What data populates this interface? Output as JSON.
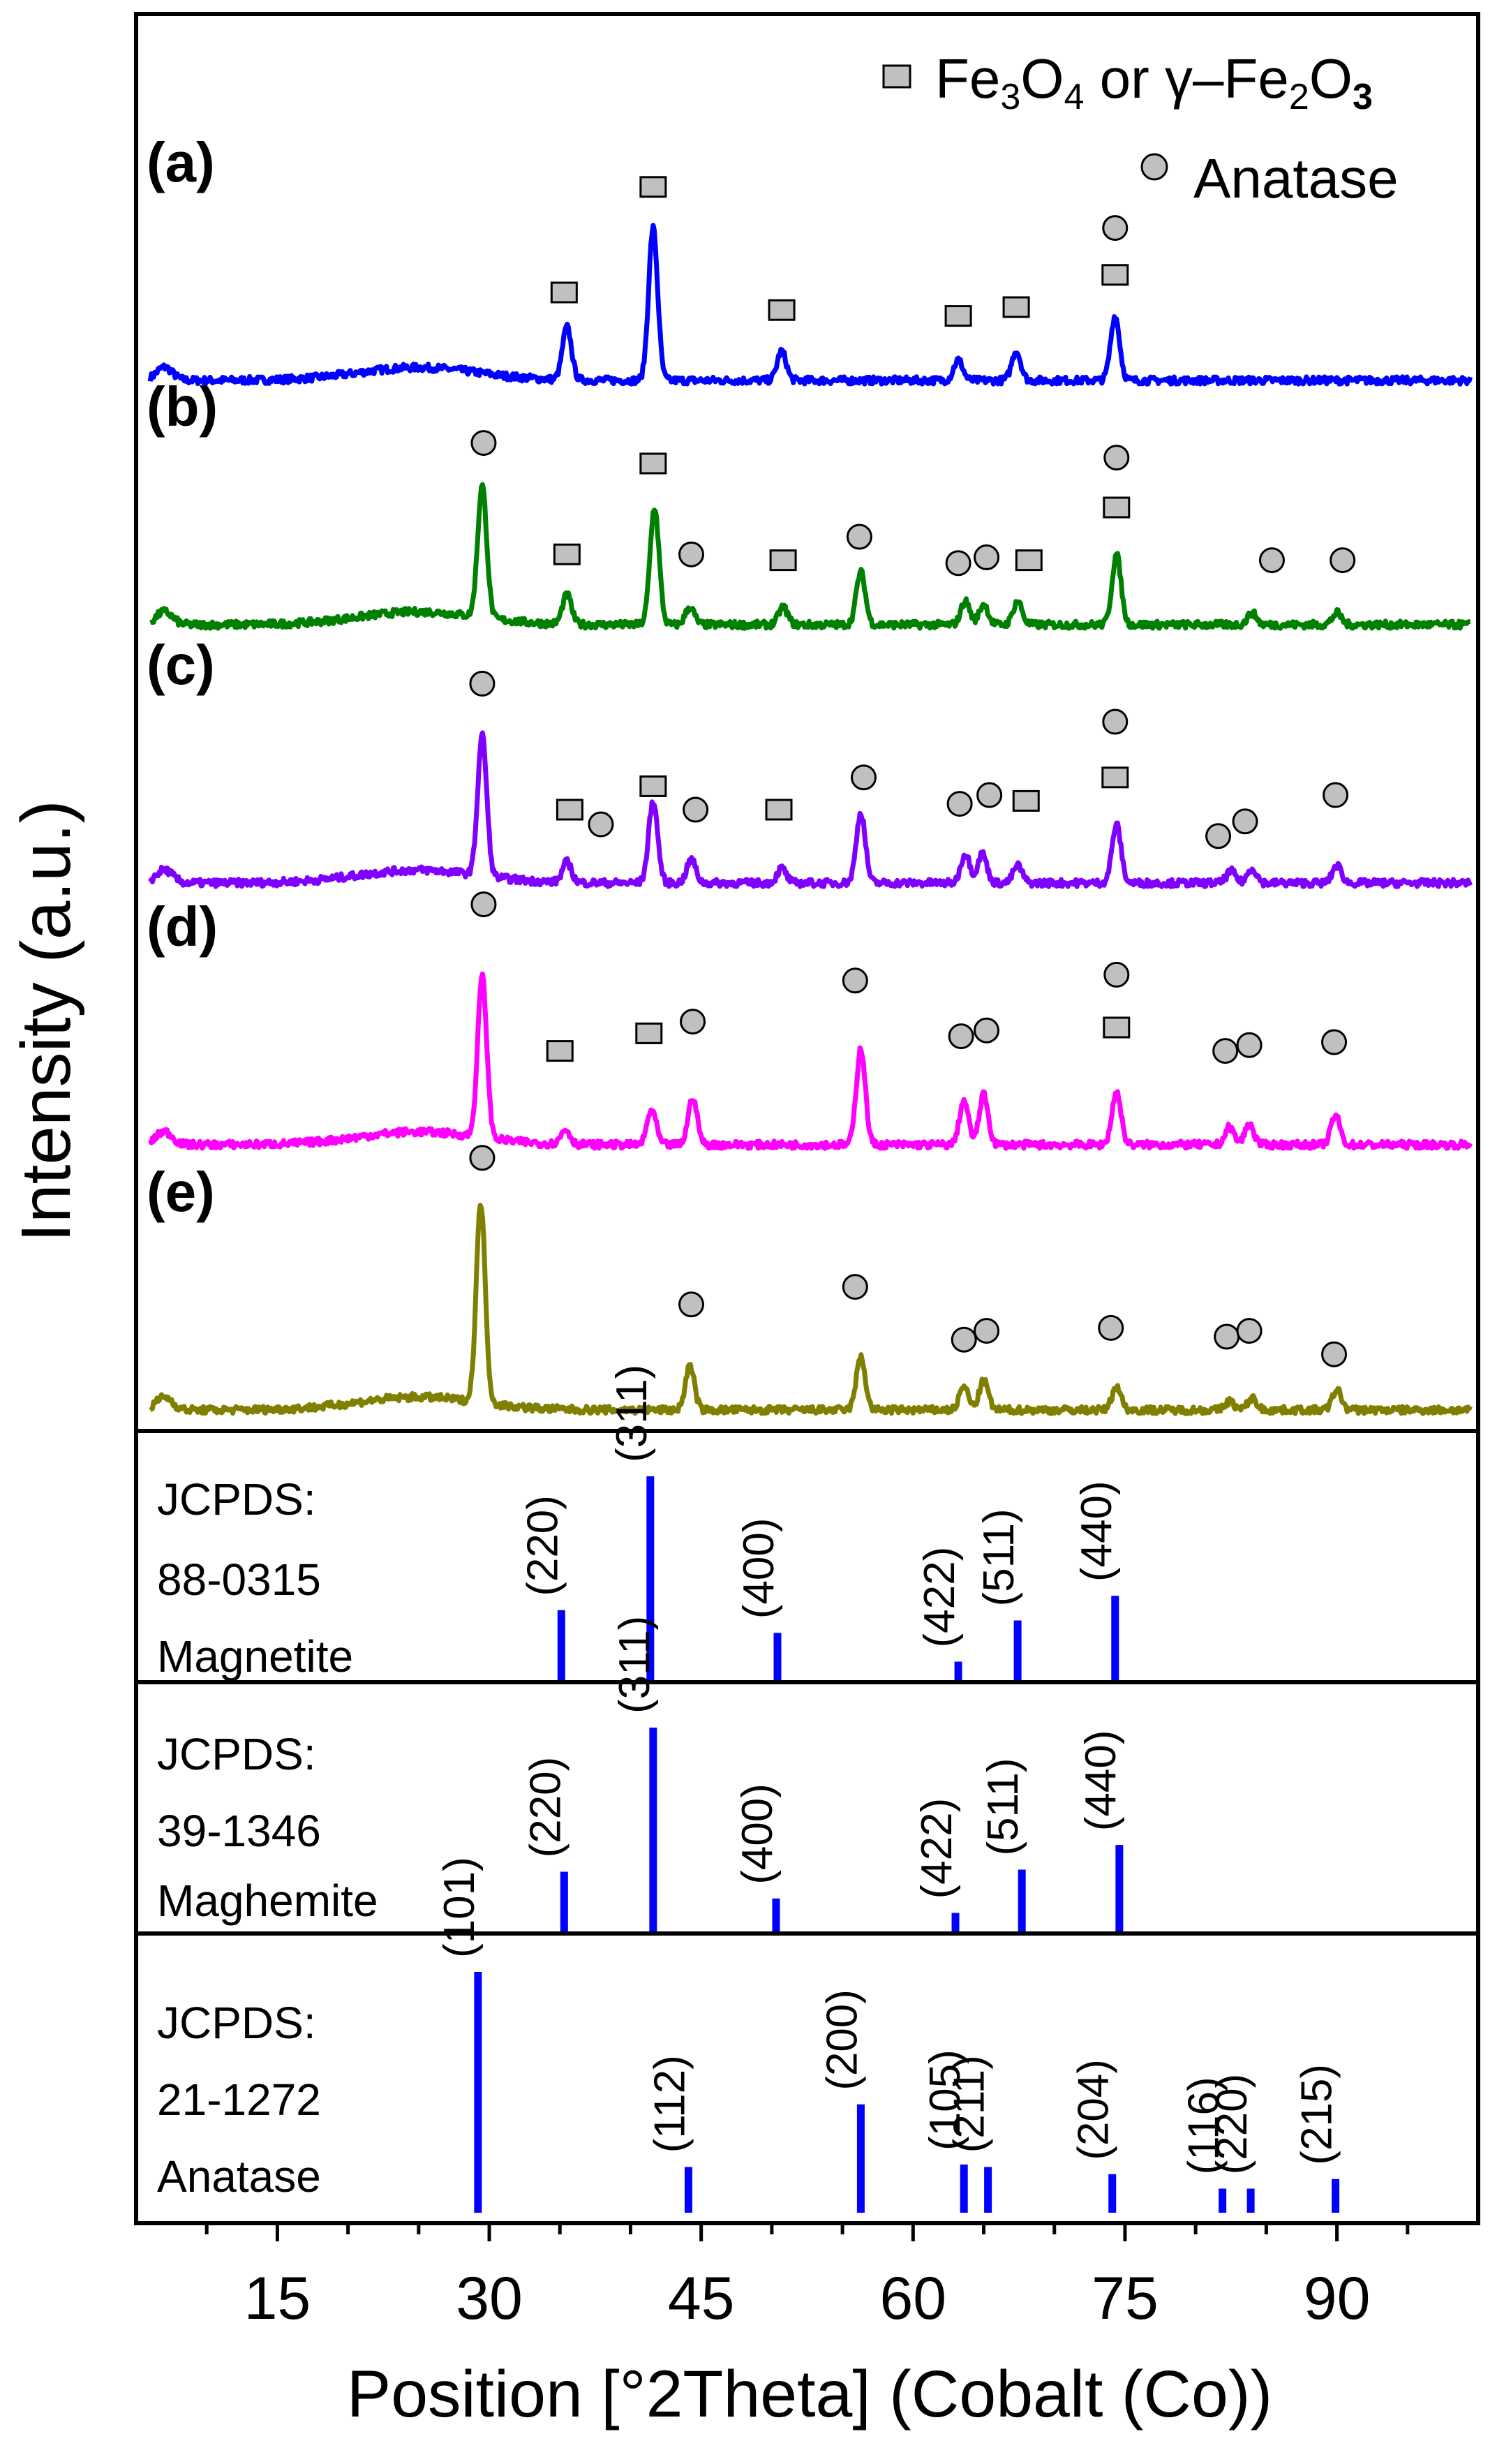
{
  "chart_data": {
    "type": "line",
    "xlabel": "Position [°2Theta] (Cobalt (Co))",
    "ylabel": "Intensity (a.u.)",
    "xlim": [
      5,
      100
    ],
    "xticks": [
      15,
      30,
      45,
      60,
      75,
      90
    ],
    "legend": {
      "position": "top-right",
      "entries": [
        {
          "marker": "square",
          "prefix": "Fe",
          "sub1": "3",
          "mid": "O",
          "sub2": "4",
          "conj": " or γ–Fe",
          "sub3": "2",
          "mid2": "O",
          "sub4": "3"
        },
        {
          "marker": "circle",
          "label": "Anatase"
        }
      ]
    },
    "series": [
      {
        "name": "(a)",
        "color": "#0000ff",
        "base": 0.2,
        "peaks": [
          [
            35.5,
            0.18
          ],
          [
            41.6,
            0.52
          ],
          [
            50.7,
            0.1
          ],
          [
            63.2,
            0.07
          ],
          [
            67.3,
            0.1
          ],
          [
            74.3,
            0.22
          ]
        ],
        "markers": [
          [
            "square",
            35.3,
            0.3
          ],
          [
            "square",
            41.6,
            0.66
          ],
          [
            "square",
            50.7,
            0.24
          ],
          [
            "square",
            63.2,
            0.22
          ],
          [
            "square",
            67.3,
            0.25
          ],
          [
            "square",
            74.3,
            0.36
          ],
          [
            "circle",
            74.3,
            0.52
          ]
        ]
      },
      {
        "name": "(b)",
        "color": "#008000",
        "base": 0.2,
        "peaks": [
          [
            29.5,
            0.45
          ],
          [
            35.5,
            0.1
          ],
          [
            41.7,
            0.4
          ],
          [
            44.2,
            0.06
          ],
          [
            50.8,
            0.06
          ],
          [
            56.3,
            0.18
          ],
          [
            63.7,
            0.08
          ],
          [
            65.0,
            0.07
          ],
          [
            67.4,
            0.08
          ],
          [
            74.4,
            0.24
          ],
          [
            84.0,
            0.04
          ],
          [
            90.0,
            0.04
          ]
        ],
        "markers": [
          [
            "circle",
            29.6,
            0.62
          ],
          [
            "square",
            35.5,
            0.24
          ],
          [
            "square",
            41.6,
            0.55
          ],
          [
            "circle",
            44.3,
            0.24
          ],
          [
            "square",
            50.8,
            0.22
          ],
          [
            "circle",
            56.2,
            0.3
          ],
          [
            "circle",
            63.2,
            0.21
          ],
          [
            "circle",
            65.2,
            0.23
          ],
          [
            "square",
            68.2,
            0.22
          ],
          [
            "square",
            74.4,
            0.4
          ],
          [
            "circle",
            74.4,
            0.57
          ],
          [
            "circle",
            85.4,
            0.22
          ],
          [
            "circle",
            90.4,
            0.22
          ]
        ]
      },
      {
        "name": "(c)",
        "color": "#8000ff",
        "base": 0.2,
        "peaks": [
          [
            29.5,
            0.48
          ],
          [
            35.5,
            0.07
          ],
          [
            41.6,
            0.28
          ],
          [
            44.3,
            0.08
          ],
          [
            50.7,
            0.05
          ],
          [
            56.3,
            0.24
          ],
          [
            63.7,
            0.1
          ],
          [
            64.9,
            0.1
          ],
          [
            67.4,
            0.06
          ],
          [
            74.4,
            0.2
          ],
          [
            82.5,
            0.04
          ],
          [
            84.0,
            0.05
          ],
          [
            90.0,
            0.06
          ]
        ],
        "markers": [
          [
            "circle",
            29.5,
            0.68
          ],
          [
            "square",
            35.7,
            0.25
          ],
          [
            "circle",
            37.9,
            0.2
          ],
          [
            "square",
            41.6,
            0.33
          ],
          [
            "circle",
            44.6,
            0.25
          ],
          [
            "square",
            50.5,
            0.25
          ],
          [
            "circle",
            56.5,
            0.36
          ],
          [
            "circle",
            63.3,
            0.27
          ],
          [
            "circle",
            65.4,
            0.3
          ],
          [
            "square",
            68.0,
            0.28
          ],
          [
            "square",
            74.3,
            0.36
          ],
          [
            "circle",
            74.3,
            0.55
          ],
          [
            "circle",
            81.6,
            0.16
          ],
          [
            "circle",
            83.5,
            0.21
          ],
          [
            "circle",
            89.9,
            0.3
          ]
        ]
      },
      {
        "name": "(d)",
        "color": "#ff00ff",
        "base": 0.2,
        "peaks": [
          [
            29.5,
            0.55
          ],
          [
            35.4,
            0.05
          ],
          [
            41.5,
            0.12
          ],
          [
            44.4,
            0.16
          ],
          [
            56.3,
            0.33
          ],
          [
            63.6,
            0.15
          ],
          [
            65.0,
            0.17
          ],
          [
            74.4,
            0.18
          ],
          [
            82.4,
            0.06
          ],
          [
            83.8,
            0.07
          ],
          [
            89.9,
            0.1
          ]
        ],
        "markers": [
          [
            "circle",
            29.6,
            0.82
          ],
          [
            "square",
            35.0,
            0.32
          ],
          [
            "square",
            41.3,
            0.38
          ],
          [
            "circle",
            44.4,
            0.42
          ],
          [
            "circle",
            55.9,
            0.56
          ],
          [
            "circle",
            63.4,
            0.37
          ],
          [
            "circle",
            65.2,
            0.39
          ],
          [
            "circle",
            74.4,
            0.58
          ],
          [
            "square",
            74.4,
            0.4
          ],
          [
            "circle",
            82.1,
            0.32
          ],
          [
            "circle",
            83.8,
            0.34
          ],
          [
            "circle",
            89.8,
            0.35
          ]
        ]
      },
      {
        "name": "(e)",
        "color": "#808000",
        "base": 0.2,
        "peaks": [
          [
            29.4,
            0.68
          ],
          [
            44.2,
            0.15
          ],
          [
            56.3,
            0.18
          ],
          [
            63.6,
            0.08
          ],
          [
            65.0,
            0.1
          ],
          [
            74.4,
            0.08
          ],
          [
            82.4,
            0.03
          ],
          [
            84.0,
            0.04
          ],
          [
            90.0,
            0.07
          ]
        ],
        "markers": [
          [
            "circle",
            29.5,
            0.86
          ],
          [
            "circle",
            44.3,
            0.36
          ],
          [
            "circle",
            55.9,
            0.42
          ],
          [
            "circle",
            63.6,
            0.24
          ],
          [
            "circle",
            65.2,
            0.27
          ],
          [
            "circle",
            74.0,
            0.28
          ],
          [
            "circle",
            82.2,
            0.25
          ],
          [
            "circle",
            83.8,
            0.27
          ],
          [
            "circle",
            89.8,
            0.19
          ]
        ]
      }
    ],
    "references": [
      {
        "name": "Magnetite",
        "label_lines": [
          "JCPDS:",
          "88-0315",
          "Magnetite"
        ],
        "lines": [
          {
            "x": 35.1,
            "h": 0.35,
            "hkl": "(220)"
          },
          {
            "x": 41.4,
            "h": 1.0,
            "hkl": "(311)"
          },
          {
            "x": 50.4,
            "h": 0.24,
            "hkl": "(400)"
          },
          {
            "x": 63.2,
            "h": 0.1,
            "hkl": "(422)"
          },
          {
            "x": 67.4,
            "h": 0.3,
            "hkl": "(511)"
          },
          {
            "x": 74.3,
            "h": 0.42,
            "hkl": "(440)"
          }
        ]
      },
      {
        "name": "Maghemite",
        "label_lines": [
          "JCPDS:",
          "39-1346",
          "Maghemite"
        ],
        "lines": [
          {
            "x": 35.3,
            "h": 0.3,
            "hkl": "(220)"
          },
          {
            "x": 41.6,
            "h": 1.0,
            "hkl": "(311)"
          },
          {
            "x": 50.3,
            "h": 0.17,
            "hkl": "(400)"
          },
          {
            "x": 63.0,
            "h": 0.1,
            "hkl": "(422)"
          },
          {
            "x": 67.7,
            "h": 0.31,
            "hkl": "(511)"
          },
          {
            "x": 74.6,
            "h": 0.43,
            "hkl": "(440)"
          }
        ]
      },
      {
        "name": "Anatase",
        "label_lines": [
          "JCPDS:",
          "21-1272",
          "Anatase"
        ],
        "lines": [
          {
            "x": 29.2,
            "h": 1.0,
            "hkl": "(101)"
          },
          {
            "x": 44.1,
            "h": 0.19,
            "hkl": "(112)"
          },
          {
            "x": 56.3,
            "h": 0.45,
            "hkl": "(200)"
          },
          {
            "x": 63.6,
            "h": 0.2,
            "hkl": "(105)"
          },
          {
            "x": 65.3,
            "h": 0.19,
            "hkl": "(211)"
          },
          {
            "x": 74.1,
            "h": 0.16,
            "hkl": "(204)"
          },
          {
            "x": 81.9,
            "h": 0.1,
            "hkl": "(116)"
          },
          {
            "x": 83.9,
            "h": 0.1,
            "hkl": "(220)"
          },
          {
            "x": 89.9,
            "h": 0.14,
            "hkl": "(215)"
          }
        ]
      }
    ]
  }
}
